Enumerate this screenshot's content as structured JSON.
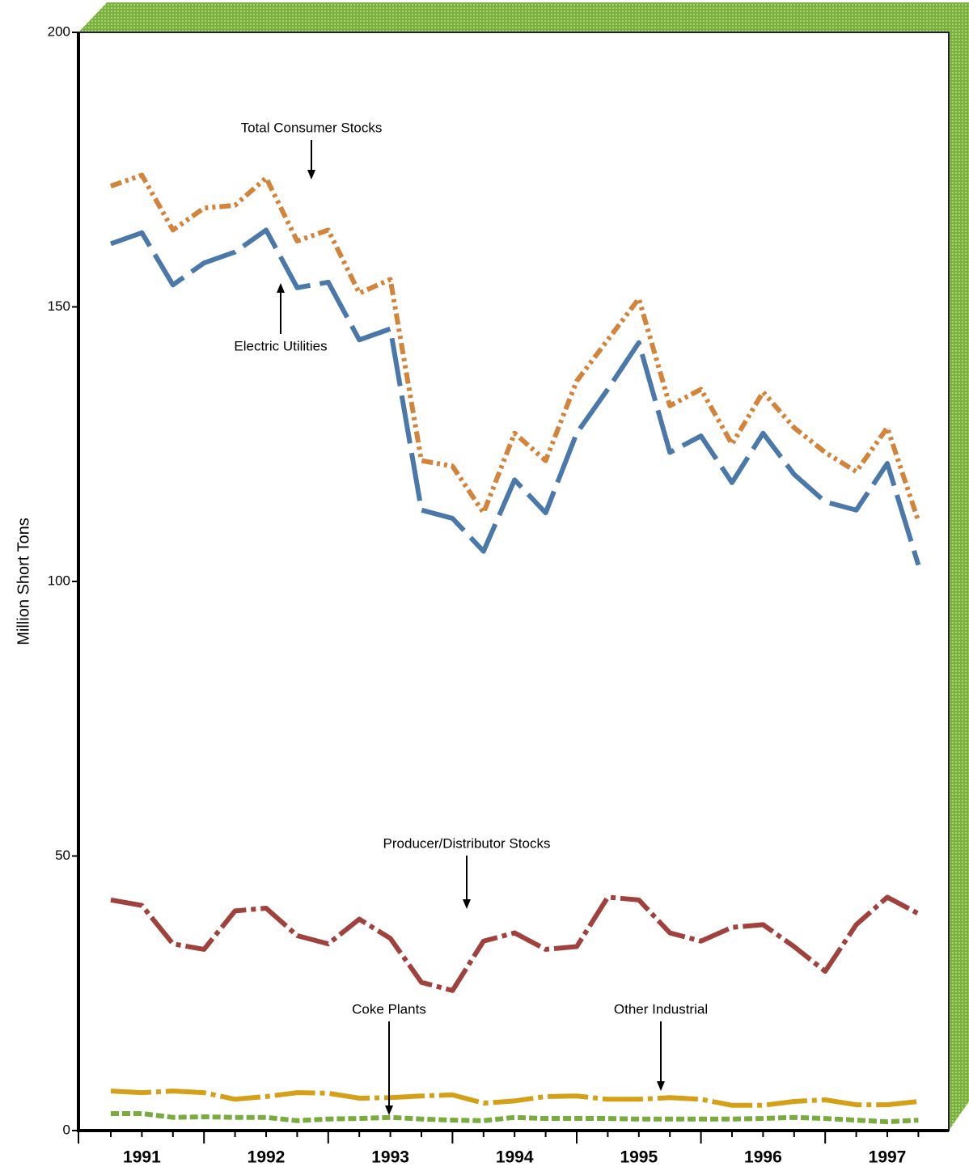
{
  "chart_data": {
    "type": "line",
    "y_label": "Million Short Tons",
    "categories": [
      null,
      "1991",
      null,
      null,
      null,
      "1992",
      null,
      null,
      null,
      "1993",
      null,
      null,
      null,
      "1994",
      null,
      null,
      null,
      "1995",
      null,
      null,
      null,
      "1996",
      null,
      null,
      null,
      "1997",
      null
    ],
    "ylim": [
      0,
      200
    ],
    "yticks": [
      0,
      50,
      100,
      150,
      200
    ],
    "series": [
      {
        "name": "Total Consumer Stocks",
        "color": "#d2843a",
        "dash": "14 5 4 5 4 5",
        "values": [
          172,
          174,
          164,
          168,
          168.5,
          173.5,
          162,
          164,
          152.5,
          155,
          122,
          121,
          112.5,
          127,
          122,
          136.5,
          144,
          151.5,
          132,
          135,
          125,
          134.5,
          128,
          123.5,
          120,
          128,
          111
        ]
      },
      {
        "name": "Electric Utilities",
        "color": "#4a78a8",
        "dash": "60 12",
        "values": [
          161.5,
          163.5,
          154,
          158,
          160,
          164,
          153.5,
          154.5,
          144,
          146,
          113,
          111.5,
          105.5,
          118.5,
          112.5,
          127,
          135,
          143.5,
          123.5,
          126.5,
          118,
          127,
          119.5,
          114.5,
          113,
          121.5,
          103
        ]
      },
      {
        "name": "Producer/Distributor Stocks",
        "color": "#a0413d",
        "dash": "40 6 6 6",
        "values": [
          42,
          41,
          34,
          33,
          40,
          40.5,
          35.5,
          34,
          38.5,
          35,
          27,
          25.5,
          34.5,
          36,
          33,
          33.5,
          42.5,
          42,
          36,
          34.5,
          37,
          37.5,
          33.5,
          29,
          37.5,
          42.5,
          39.5
        ]
      },
      {
        "name": "Other Industrial",
        "color": "#d4a017",
        "dash": "50 6 6 6",
        "values": [
          7.2,
          6.9,
          7.2,
          6.9,
          5.7,
          6.2,
          6.9,
          6.8,
          5.9,
          6,
          6.3,
          6.5,
          5,
          5.4,
          6.2,
          6.3,
          5.7,
          5.7,
          6,
          5.7,
          4.6,
          4.6,
          5.3,
          5.6,
          4.7,
          4.7,
          5.3
        ]
      },
      {
        "name": "Coke Plants",
        "color": "#7aab3f",
        "dash": "10 4",
        "values": [
          3.1,
          3.1,
          2.4,
          2.5,
          2.4,
          2.4,
          1.8,
          2.1,
          2.2,
          2.4,
          2.1,
          1.9,
          1.8,
          2.4,
          2.2,
          2.2,
          2.2,
          2.1,
          2.1,
          2.1,
          2.1,
          2.2,
          2.4,
          2.2,
          1.9,
          1.6,
          1.9
        ]
      }
    ]
  }
}
